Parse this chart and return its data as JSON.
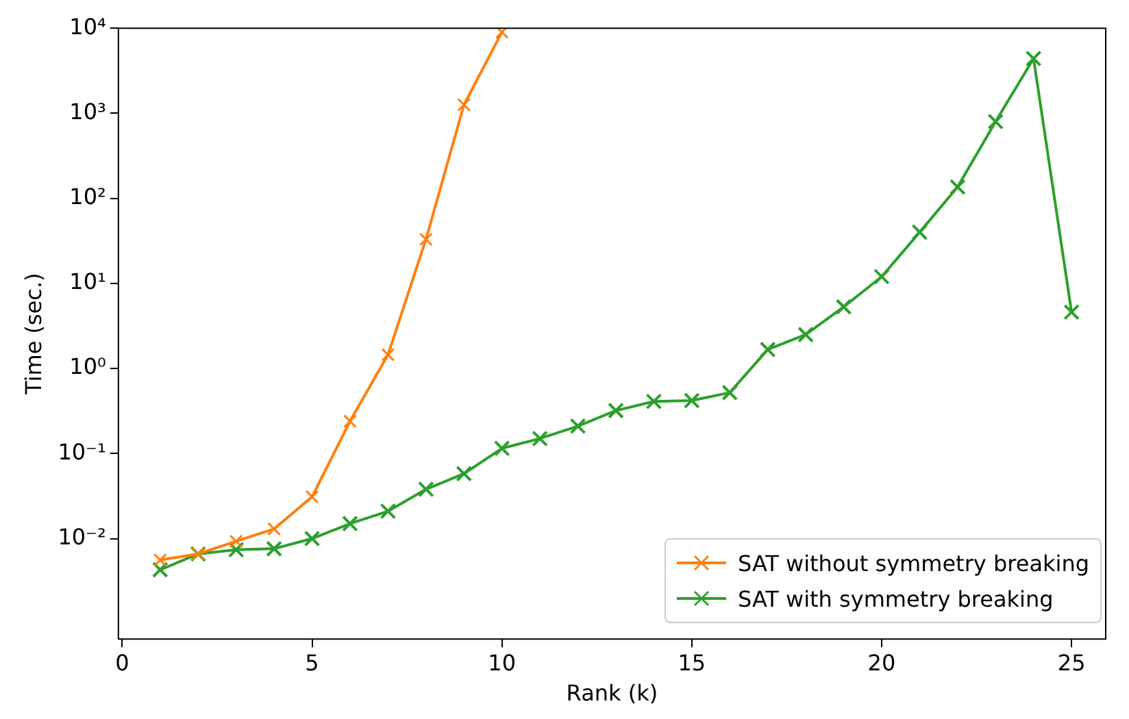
{
  "chart_data": {
    "type": "line",
    "xlabel": "Rank (k)",
    "ylabel": "Time (sec.)",
    "log": "y",
    "grid": false,
    "legend": "bottom right",
    "marker": "cross",
    "line_style": "solid",
    "xlim": [
      -0.1,
      25.9
    ],
    "xticks": [
      0,
      5,
      10,
      15,
      20,
      25
    ],
    "ylim": [
      0.00066,
      10000
    ],
    "yticks": [
      {
        "value": 0.01,
        "label": "10⁻²"
      },
      {
        "value": 0.1,
        "label": "10⁻¹"
      },
      {
        "value": 1,
        "label": "10⁰"
      },
      {
        "value": 10,
        "label": "10¹"
      },
      {
        "value": 100,
        "label": "10²"
      },
      {
        "value": 1000,
        "label": "10³"
      },
      {
        "value": 10000,
        "label": "10⁴"
      }
    ],
    "series": [
      {
        "name": "SAT without symmetry breaking",
        "color": "#ff7f0e",
        "x": [
          1,
          2,
          3,
          4,
          5,
          6,
          7,
          8,
          9,
          10
        ],
        "values": [
          0.0056,
          0.0066,
          0.0093,
          0.013,
          0.031,
          0.24,
          1.45,
          33,
          1260,
          9000
        ]
      },
      {
        "name": "SAT with symmetry breaking",
        "color": "#2ca02c",
        "x": [
          1,
          2,
          3,
          4,
          5,
          6,
          7,
          8,
          9,
          10,
          11,
          12,
          13,
          14,
          15,
          16,
          17,
          18,
          19,
          20,
          21,
          22,
          23,
          24,
          25
        ],
        "values": [
          0.0043,
          0.0066,
          0.0074,
          0.0076,
          0.01,
          0.015,
          0.021,
          0.038,
          0.058,
          0.115,
          0.15,
          0.21,
          0.32,
          0.41,
          0.42,
          0.52,
          1.67,
          2.5,
          5.3,
          12,
          40,
          136,
          800,
          4400,
          4.6
        ]
      }
    ]
  }
}
